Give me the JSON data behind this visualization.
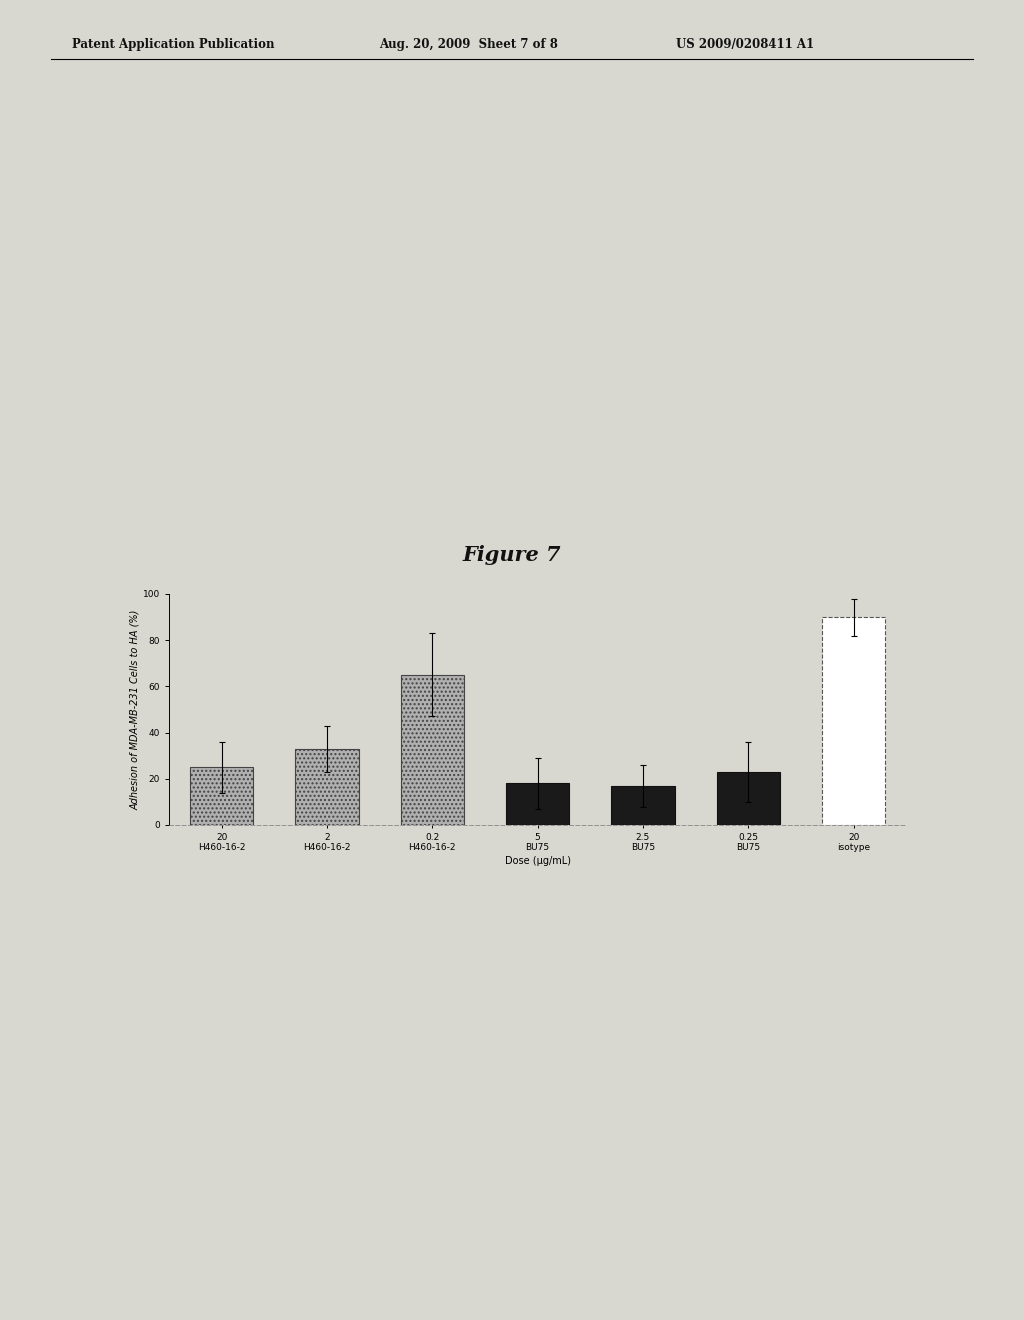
{
  "title": "Figure 7",
  "ylabel": "Adhesion of MDA-MB-231 Cells to HA (%)",
  "xlabel": "Dose (μg/mL)",
  "categories": [
    "20\nH460-16-2",
    "2\nH460-16-2",
    "0.2\nH460-16-2",
    "5\nBU75",
    "2.5\nBU75",
    "0.25\nBU75",
    "20\nisotype"
  ],
  "values": [
    25.0,
    33.0,
    65.0,
    18.0,
    17.0,
    23.0,
    90.0
  ],
  "errors": [
    11.0,
    10.0,
    18.0,
    11.0,
    9.0,
    13.0,
    8.0
  ],
  "bar_colors": [
    "#b0b0b0",
    "#b0b0b0",
    "#b0b0b0",
    "#1a1a1a",
    "#1a1a1a",
    "#1a1a1a",
    "#ffffff"
  ],
  "bar_hatches": [
    "....",
    "....",
    "....",
    "",
    "",
    "",
    ""
  ],
  "bar_edgecolors": [
    "#444444",
    "#444444",
    "#444444",
    "#111111",
    "#111111",
    "#111111",
    "#555555"
  ],
  "isotype_border_style": "dashed",
  "ylim": [
    0,
    100
  ],
  "yticks": [
    0,
    20,
    40,
    60,
    80,
    100
  ],
  "background_color": "#e8e8e8",
  "patent_line1": "Patent Application Publication",
  "patent_line2": "Aug. 20, 2009  Sheet 7 of 8",
  "patent_line3": "US 2009/0208411 A1",
  "title_fontsize": 15,
  "axis_label_fontsize": 7,
  "tick_fontsize": 6.5
}
